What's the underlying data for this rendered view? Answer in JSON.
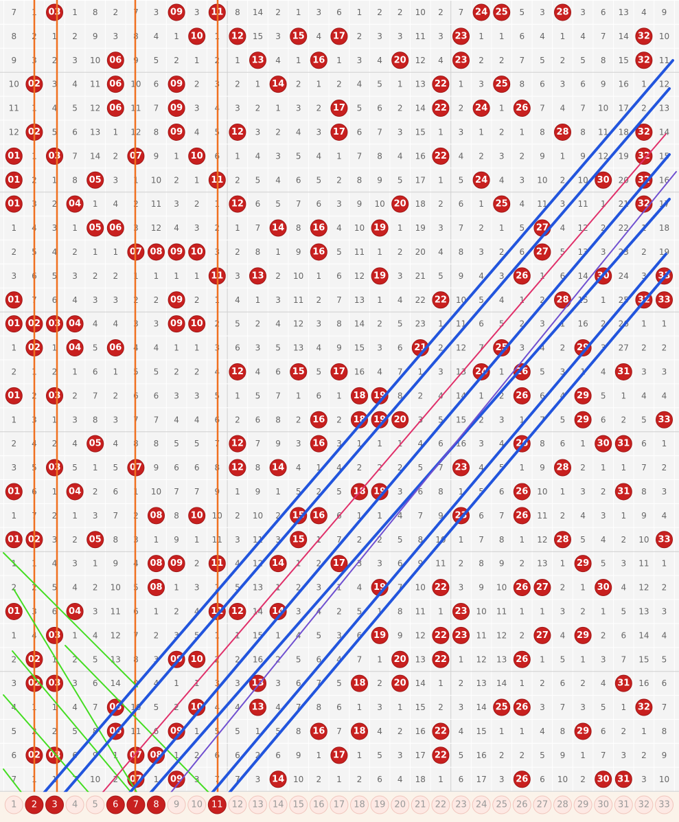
{
  "grid": {
    "rows": [
      [
        7,
        1,
        "03",
        1,
        8,
        2,
        7,
        3,
        "09",
        3,
        "11",
        8,
        14,
        2,
        1,
        3,
        6,
        1,
        2,
        2,
        10,
        2,
        7,
        "24",
        "25",
        5,
        3,
        "28",
        3,
        6,
        13,
        4,
        9
      ],
      [
        8,
        2,
        1,
        2,
        9,
        3,
        8,
        4,
        1,
        "10",
        1,
        "12",
        15,
        3,
        "15",
        4,
        "17",
        2,
        3,
        3,
        11,
        3,
        "23",
        1,
        1,
        6,
        4,
        1,
        4,
        7,
        14,
        "32",
        10
      ],
      [
        9,
        3,
        2,
        3,
        10,
        "06",
        9,
        5,
        2,
        1,
        2,
        1,
        "13",
        4,
        1,
        "16",
        1,
        3,
        4,
        "20",
        12,
        4,
        "23",
        2,
        2,
        7,
        5,
        2,
        5,
        8,
        15,
        "32",
        11
      ],
      [
        10,
        "02",
        3,
        4,
        11,
        "06",
        10,
        6,
        "09",
        2,
        3,
        2,
        1,
        "14",
        2,
        1,
        2,
        4,
        5,
        1,
        13,
        "22",
        1,
        3,
        "25",
        8,
        6,
        3,
        6,
        9,
        16,
        1,
        12
      ],
      [
        11,
        1,
        4,
        5,
        12,
        "06",
        11,
        7,
        "09",
        3,
        4,
        3,
        2,
        1,
        3,
        2,
        "17",
        5,
        6,
        2,
        14,
        "22",
        2,
        "24",
        1,
        "26",
        7,
        4,
        7,
        10,
        17,
        2,
        13
      ],
      [
        12,
        "02",
        5,
        6,
        13,
        1,
        12,
        8,
        "09",
        4,
        5,
        "12",
        3,
        2,
        4,
        3,
        "17",
        6,
        7,
        3,
        15,
        1,
        3,
        1,
        2,
        1,
        8,
        "28",
        8,
        11,
        18,
        "32",
        14
      ],
      [
        "01",
        1,
        "03",
        7,
        14,
        2,
        "07",
        9,
        1,
        "10",
        6,
        1,
        4,
        3,
        5,
        4,
        1,
        7,
        8,
        4,
        16,
        "22",
        4,
        2,
        3,
        2,
        9,
        1,
        9,
        12,
        19,
        "32",
        15
      ],
      [
        "01",
        2,
        1,
        8,
        "05",
        3,
        1,
        10,
        2,
        1,
        "11",
        2,
        5,
        4,
        6,
        5,
        2,
        8,
        9,
        5,
        17,
        1,
        5,
        "24",
        4,
        3,
        10,
        2,
        10,
        "30",
        20,
        "32",
        16
      ],
      [
        "01",
        3,
        2,
        "04",
        1,
        4,
        2,
        11,
        3,
        2,
        1,
        "12",
        6,
        5,
        7,
        6,
        3,
        9,
        10,
        "20",
        18,
        2,
        6,
        1,
        "25",
        4,
        11,
        3,
        11,
        1,
        21,
        "32",
        17
      ],
      [
        1,
        4,
        3,
        1,
        "05",
        "06",
        3,
        12,
        4,
        3,
        2,
        1,
        7,
        "14",
        8,
        "16",
        4,
        10,
        "19",
        1,
        19,
        3,
        7,
        2,
        1,
        5,
        "27",
        4,
        12,
        2,
        22,
        1,
        18
      ],
      [
        2,
        5,
        4,
        2,
        1,
        1,
        "07",
        "08",
        "09",
        "10",
        3,
        2,
        8,
        1,
        9,
        "16",
        5,
        11,
        1,
        2,
        20,
        4,
        8,
        3,
        2,
        6,
        "27",
        5,
        13,
        3,
        23,
        2,
        19
      ],
      [
        3,
        6,
        5,
        3,
        2,
        2,
        1,
        1,
        1,
        1,
        "11",
        3,
        "13",
        2,
        10,
        1,
        6,
        12,
        "19",
        3,
        21,
        5,
        9,
        4,
        3,
        "26",
        1,
        6,
        14,
        "30",
        24,
        3,
        "33"
      ],
      [
        "01",
        7,
        6,
        4,
        3,
        3,
        2,
        2,
        "09",
        2,
        1,
        4,
        1,
        3,
        11,
        2,
        7,
        13,
        1,
        4,
        22,
        "22",
        10,
        5,
        4,
        1,
        2,
        "28",
        15,
        1,
        25,
        "32",
        "33"
      ],
      [
        "01",
        "02",
        "03",
        "04",
        4,
        4,
        3,
        3,
        "09",
        "10",
        2,
        5,
        2,
        4,
        12,
        3,
        8,
        14,
        2,
        5,
        23,
        1,
        11,
        6,
        5,
        2,
        3,
        1,
        16,
        2,
        26,
        1,
        1
      ],
      [
        1,
        "02",
        1,
        "04",
        5,
        "06",
        4,
        4,
        1,
        1,
        3,
        6,
        3,
        5,
        13,
        4,
        9,
        15,
        3,
        6,
        "21",
        2,
        12,
        7,
        "25",
        3,
        4,
        2,
        "29",
        3,
        27,
        2,
        2
      ],
      [
        2,
        1,
        2,
        1,
        6,
        1,
        5,
        5,
        2,
        2,
        4,
        "12",
        4,
        6,
        "15",
        5,
        "17",
        16,
        4,
        7,
        1,
        3,
        13,
        "24",
        1,
        "26",
        5,
        3,
        1,
        4,
        "31",
        3,
        3
      ],
      [
        "01",
        2,
        "03",
        2,
        7,
        2,
        6,
        6,
        3,
        3,
        5,
        1,
        5,
        7,
        1,
        6,
        1,
        "18",
        "19",
        8,
        2,
        4,
        14,
        1,
        2,
        "26",
        6,
        4,
        "29",
        5,
        1,
        4,
        4
      ],
      [
        1,
        3,
        1,
        3,
        8,
        3,
        7,
        7,
        4,
        4,
        6,
        2,
        6,
        8,
        2,
        "16",
        2,
        "18",
        "19",
        "20",
        3,
        5,
        15,
        2,
        3,
        1,
        7,
        5,
        "29",
        6,
        2,
        5,
        "33"
      ],
      [
        2,
        4,
        2,
        4,
        "05",
        4,
        8,
        8,
        5,
        5,
        7,
        "12",
        7,
        9,
        3,
        "16",
        3,
        1,
        1,
        1,
        4,
        6,
        16,
        3,
        4,
        "26",
        8,
        6,
        1,
        "30",
        "31",
        6,
        1
      ],
      [
        3,
        5,
        "03",
        5,
        1,
        5,
        "07",
        9,
        6,
        6,
        8,
        "12",
        8,
        "14",
        4,
        1,
        4,
        2,
        2,
        2,
        5,
        7,
        "23",
        4,
        5,
        1,
        9,
        "28",
        2,
        1,
        1,
        7,
        2
      ],
      [
        "01",
        6,
        1,
        "04",
        2,
        6,
        1,
        10,
        7,
        7,
        9,
        1,
        9,
        1,
        5,
        2,
        5,
        "18",
        "19",
        3,
        6,
        8,
        1,
        5,
        6,
        "26",
        10,
        1,
        3,
        2,
        "31",
        8,
        3
      ],
      [
        1,
        7,
        2,
        1,
        3,
        7,
        2,
        "08",
        8,
        "10",
        10,
        2,
        10,
        2,
        "15",
        "16",
        6,
        1,
        1,
        4,
        7,
        9,
        "23",
        6,
        7,
        "26",
        11,
        2,
        4,
        3,
        1,
        9,
        4
      ],
      [
        "01",
        "02",
        3,
        2,
        "05",
        8,
        3,
        1,
        9,
        1,
        11,
        3,
        11,
        3,
        "15",
        1,
        7,
        2,
        2,
        5,
        8,
        10,
        1,
        7,
        8,
        1,
        12,
        "28",
        5,
        4,
        2,
        10,
        "33"
      ],
      [
        1,
        1,
        4,
        3,
        1,
        9,
        4,
        "08",
        "09",
        2,
        "11",
        4,
        12,
        "14",
        1,
        2,
        "17",
        3,
        3,
        6,
        9,
        11,
        2,
        8,
        9,
        2,
        13,
        1,
        "29",
        5,
        3,
        11,
        1
      ],
      [
        2,
        2,
        5,
        4,
        2,
        10,
        5,
        "08",
        1,
        3,
        1,
        5,
        13,
        1,
        2,
        3,
        1,
        4,
        "19",
        7,
        10,
        "22",
        3,
        9,
        10,
        "26",
        "27",
        2,
        1,
        "30",
        4,
        12,
        2
      ],
      [
        "01",
        3,
        6,
        "04",
        3,
        11,
        6,
        1,
        2,
        4,
        "11",
        "12",
        14,
        "14",
        3,
        4,
        2,
        5,
        1,
        8,
        11,
        1,
        "23",
        10,
        11,
        1,
        1,
        3,
        2,
        1,
        5,
        13,
        3
      ],
      [
        1,
        4,
        "03",
        1,
        4,
        12,
        7,
        2,
        3,
        5,
        1,
        1,
        15,
        1,
        4,
        5,
        3,
        6,
        "19",
        9,
        12,
        "22",
        "23",
        11,
        12,
        2,
        "27",
        4,
        "29",
        2,
        6,
        14,
        4
      ],
      [
        2,
        "02",
        1,
        2,
        5,
        13,
        8,
        3,
        "09",
        "10",
        2,
        2,
        16,
        2,
        5,
        6,
        4,
        7,
        1,
        "20",
        13,
        "22",
        1,
        12,
        13,
        "26",
        1,
        5,
        1,
        3,
        7,
        15,
        5
      ],
      [
        3,
        "02",
        "03",
        3,
        6,
        14,
        9,
        4,
        1,
        1,
        3,
        3,
        "13",
        3,
        6,
        7,
        5,
        "18",
        2,
        "20",
        14,
        1,
        2,
        13,
        14,
        1,
        2,
        6,
        2,
        4,
        "31",
        16,
        6
      ],
      [
        4,
        1,
        1,
        4,
        7,
        "06",
        10,
        5,
        2,
        "10",
        4,
        4,
        "13",
        4,
        7,
        8,
        6,
        1,
        3,
        1,
        15,
        2,
        3,
        14,
        "25",
        "26",
        3,
        7,
        3,
        5,
        1,
        "32",
        7
      ],
      [
        5,
        2,
        2,
        5,
        8,
        "06",
        11,
        6,
        "09",
        1,
        5,
        5,
        1,
        5,
        8,
        "16",
        7,
        "18",
        4,
        2,
        16,
        "22",
        4,
        15,
        1,
        1,
        4,
        8,
        "29",
        6,
        2,
        1,
        8
      ],
      [
        6,
        "02",
        "03",
        6,
        9,
        1,
        "07",
        "08",
        1,
        2,
        6,
        6,
        2,
        6,
        9,
        1,
        "17",
        1,
        5,
        3,
        17,
        "22",
        5,
        16,
        2,
        2,
        5,
        9,
        1,
        7,
        3,
        2,
        9
      ],
      [
        7,
        1,
        1,
        7,
        10,
        2,
        "07",
        1,
        "09",
        3,
        7,
        7,
        3,
        "14",
        10,
        2,
        1,
        2,
        6,
        4,
        18,
        1,
        6,
        17,
        3,
        "26",
        6,
        10,
        2,
        "30",
        "31",
        3,
        10
      ]
    ],
    "selector": {
      "numbers": [
        1,
        2,
        3,
        4,
        5,
        6,
        7,
        8,
        9,
        10,
        11,
        12,
        13,
        14,
        15,
        16,
        17,
        18,
        19,
        20,
        21,
        22,
        23,
        24,
        25,
        26,
        27,
        28,
        29,
        30,
        31,
        32,
        33
      ],
      "selected": [
        2,
        3,
        6,
        7,
        8,
        11
      ]
    }
  }
}
